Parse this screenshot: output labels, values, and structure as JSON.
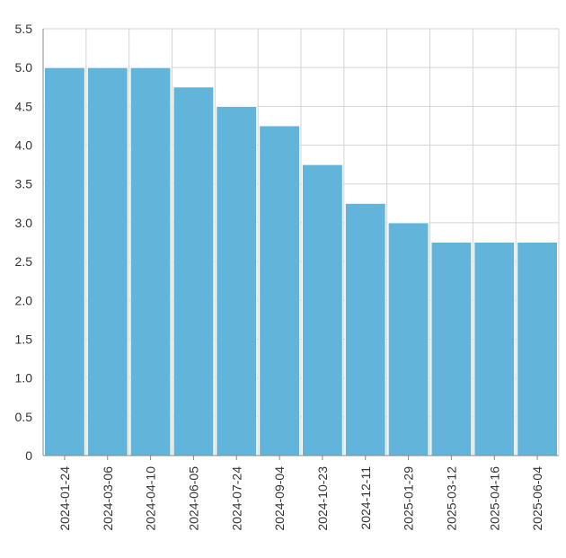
{
  "chart_data": {
    "type": "bar",
    "title": "",
    "xlabel": "",
    "ylabel": "",
    "categories": [
      "2024-01-24",
      "2024-03-06",
      "2024-04-10",
      "2024-06-05",
      "2024-07-24",
      "2024-09-04",
      "2024-10-23",
      "2024-12-11",
      "2025-01-29",
      "2025-03-12",
      "2025-04-16",
      "2025-06-04"
    ],
    "values": [
      5.0,
      5.0,
      5.0,
      4.75,
      4.5,
      4.25,
      3.75,
      3.25,
      3.0,
      2.75,
      2.75,
      2.75
    ],
    "ylim": [
      0,
      5.5
    ],
    "yticks": [
      "0",
      "0.5",
      "1.0",
      "1.5",
      "2.0",
      "2.5",
      "3.0",
      "3.5",
      "4.0",
      "4.5",
      "5.0",
      "5.5"
    ],
    "grid": true,
    "legend": "none",
    "bar_color": "#63b4da",
    "bar_stroke": "#ffffff"
  }
}
